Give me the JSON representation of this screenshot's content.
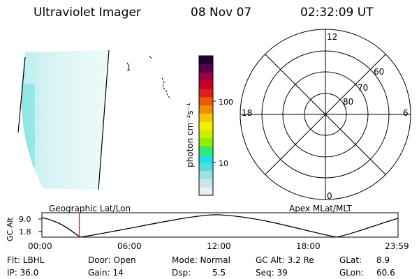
{
  "header": {
    "instrument": "Ultraviolet Imager",
    "date": "08 Nov 07",
    "time": "02:32:09 UT"
  },
  "colorbar": {
    "unit_label": "photon cm⁻²s⁻¹",
    "ticks": [
      "100",
      "10"
    ],
    "colors": [
      "#e6efef",
      "#cfe3e3",
      "#9fe0e0",
      "#59dcdc",
      "#1ee0e0",
      "#32e67a",
      "#8cf000",
      "#c8f000",
      "#f0f000",
      "#f0c800",
      "#f08c00",
      "#e85a00",
      "#e01e1e",
      "#c8001e",
      "#9a0046",
      "#5a004a",
      "#200030"
    ]
  },
  "polar_plot": {
    "clock_labels": [
      "12",
      "18",
      "6",
      "0"
    ],
    "lat_labels": [
      "60",
      "70",
      "80"
    ]
  },
  "timeline": {
    "left_label": "Geographic Lat/Lon",
    "right_label": "Apex MLat/MLT",
    "axis_title": "GC Alt",
    "y_ticks": [
      "9.0",
      "1.8"
    ],
    "x_ticks": [
      "00:00",
      "06:00",
      "12:00",
      "18:00",
      "23:59"
    ],
    "current_time_fraction": 0.105
  },
  "status": {
    "flt": "Flt: LBHL",
    "ip": "IP: 36.0",
    "door": "Door: Open",
    "gain": "Gain: 14",
    "mode": "Mode: Normal",
    "dsp_label": "Dsp:",
    "dsp_value": "5.5",
    "gc_alt": "GC Alt: 3.2 Re",
    "seq": "Seq: 39",
    "glat_label": "GLat:",
    "glat_value": "8.9",
    "glon_label": "GLon:",
    "glon_value": "60.6"
  }
}
